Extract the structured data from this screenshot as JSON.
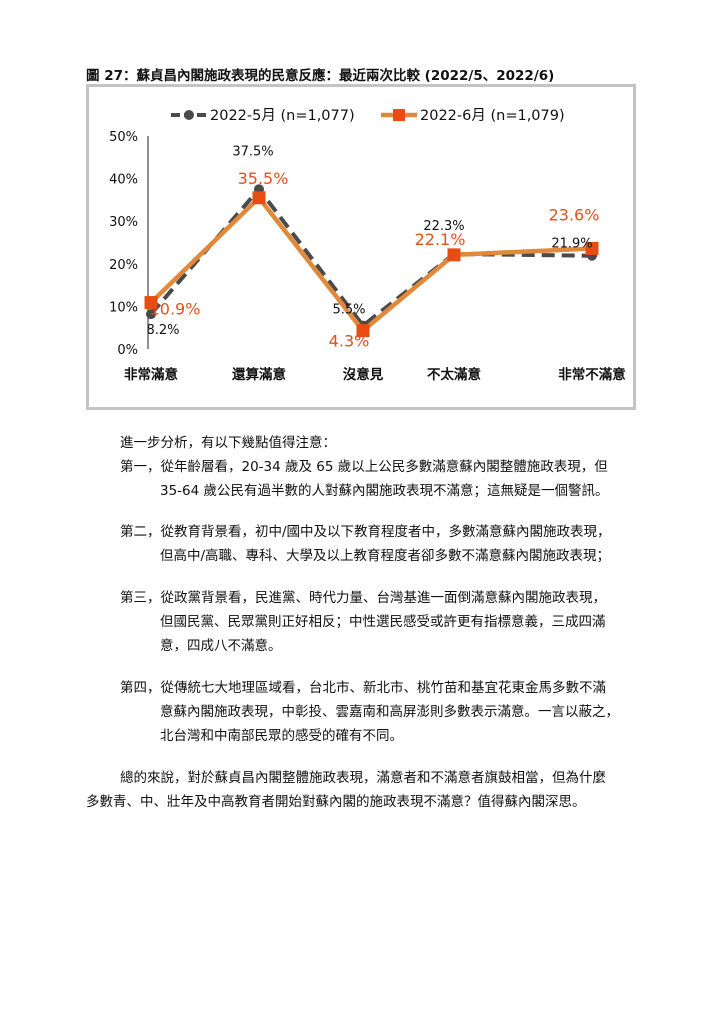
{
  "figure": {
    "title": "圖 27：蘇貞昌內閣施政表現的民意反應：最近兩次比較 (2022/5、2022/6)"
  },
  "chart_data": {
    "type": "line",
    "categories": [
      "非常滿意",
      "還算滿意",
      "沒意見",
      "不太滿意",
      "非常不滿意"
    ],
    "ylim": [
      0,
      50
    ],
    "yticks": [
      "0%",
      "10%",
      "20%",
      "30%",
      "40%",
      "50%"
    ],
    "grid": false,
    "legend_position": "top",
    "series": [
      {
        "name": "2022-5月 (n=1,077)",
        "values": [
          8.2,
          37.5,
          5.5,
          22.3,
          21.9
        ],
        "labels": [
          "8.2%",
          "37.5%",
          "5.5%",
          "22.3%",
          "21.9%"
        ],
        "color": "#4a4a4a",
        "style": "dashed",
        "marker": "circle"
      },
      {
        "name": "2022-6月 (n=1,079)",
        "values": [
          10.9,
          35.5,
          4.3,
          22.1,
          23.6
        ],
        "labels": [
          "10.9%",
          "35.5%",
          "4.3%",
          "22.1%",
          "23.6%"
        ],
        "color": "#e0893a",
        "label_color": "#e0521c",
        "marker_color": "#e84c12",
        "style": "solid",
        "marker": "square"
      }
    ]
  },
  "text": {
    "intro": "進一步分析，有以下幾點值得注意：",
    "point1": [
      "第一，從年齡層看，20-34 歲及 65 歲以上公民多數滿意蘇內閣整體施政表現，但",
      "35-64 歲公民有過半數的人對蘇內閣施政表現不滿意；這無疑是一個警訊。"
    ],
    "point2": [
      "第二，從教育背景看，初中/國中及以下教育程度者中，多數滿意蘇內閣施政表現，",
      "但高中/高職、專科、大學及以上教育程度者卻多數不滿意蘇內閣施政表現；"
    ],
    "point3": [
      "第三，從政黨背景看，民進黨、時代力量、台灣基進一面倒滿意蘇內閣施政表現，",
      "但國民黨、民眾黨則正好相反；中性選民感受或許更有指標意義，三成四滿",
      "意，四成八不滿意。"
    ],
    "point4": [
      "第四，從傳統七大地理區域看，台北市、新北市、桃竹苗和基宜花東金馬多數不滿",
      "意蘇內閣施政表現，中彰投、雲嘉南和高屏澎則多數表示滿意。一言以蔽之，",
      "北台灣和中南部民眾的感受的確有不同。"
    ],
    "conclusion": [
      "總的來說，對於蘇貞昌內閣整體施政表現，滿意者和不滿意者旗鼓相當，但為什麼",
      "多數青、中、壯年及中高教育者開始對蘇內閣的施政表現不滿意？值得蘇內閣深思。"
    ]
  }
}
